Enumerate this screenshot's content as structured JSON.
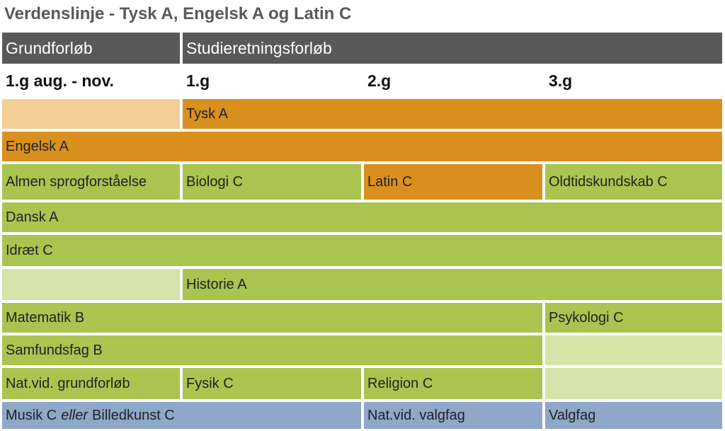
{
  "title": "Verdenslinje - Tysk A, Engelsk A og Latin C",
  "header": [
    "Grundforløb",
    "Studieretningsforløb"
  ],
  "periods": [
    "1.g aug. - nov.",
    "1.g",
    "2.g",
    "3.g"
  ],
  "rows": [
    [
      "Tysk A"
    ],
    [
      "Engelsk A"
    ],
    [
      "Almen sprogforståelse",
      "Biologi C",
      "Latin C",
      "Oldtidskundskab C"
    ],
    [
      "Dansk A"
    ],
    [
      "Idræt C"
    ],
    [
      "Historie A"
    ],
    [
      "Matematik B",
      "Psykologi C"
    ],
    [
      "Samfundsfag B"
    ],
    [
      "Nat.vid. grundforløb",
      "Fysik C",
      "Religion C"
    ],
    [
      [
        "Musik C",
        "eller",
        "Billedkunst C"
      ],
      "Nat.vid. valgfag",
      "Valgfag"
    ]
  ]
}
